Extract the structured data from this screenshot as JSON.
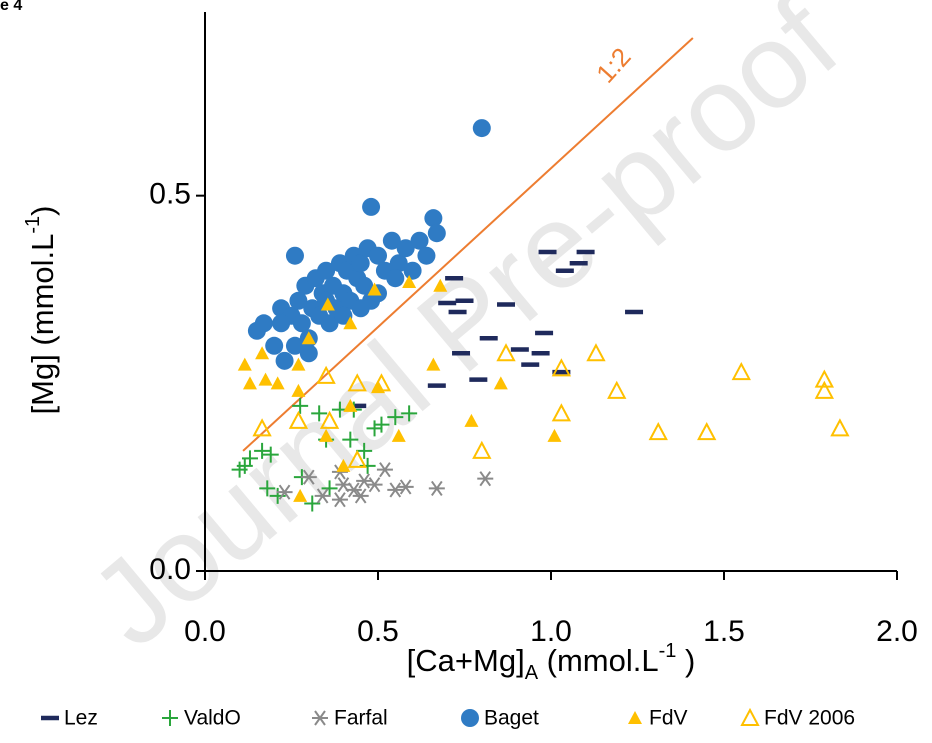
{
  "chart_data": {
    "type": "scatter",
    "figure_label": "e 4",
    "watermark": "Journal Pre-proof",
    "ylabel": [
      "[Mg] (mmol.L",
      "-1",
      ")"
    ],
    "xlabel": [
      "[Ca+Mg]",
      "A",
      " (mmol.L",
      "-1",
      " )"
    ],
    "xlim": [
      0,
      2
    ],
    "ylim": [
      0,
      0.75
    ],
    "xticks": [
      {
        "value": 0,
        "label": "0.0"
      },
      {
        "value": 0.5,
        "label": "0.5"
      },
      {
        "value": 1,
        "label": "1.0"
      },
      {
        "value": 1.5,
        "label": "1.5"
      },
      {
        "value": 2,
        "label": "2.0"
      }
    ],
    "yticks": [
      {
        "value": 0,
        "label": "0.0"
      },
      {
        "value": 0.5,
        "label": "0.5"
      }
    ],
    "grid": false,
    "legend": "bottom",
    "reference_line": {
      "label": "1:2",
      "color": "#ed7d31",
      "x": [
        0.11,
        1.41
      ],
      "y": [
        0.16,
        0.71
      ]
    },
    "series": [
      {
        "name": "Lez",
        "color": "#1f2a5c",
        "marker": "dash",
        "x": [
          0.44,
          0.72,
          0.7,
          0.75,
          0.73,
          0.87,
          0.82,
          0.74,
          0.67,
          0.79,
          0.91,
          0.97,
          0.98,
          0.94,
          1.03,
          1.04,
          1.08,
          1.1,
          0.99,
          1.24
        ],
        "values": [
          0.22,
          0.39,
          0.357,
          0.36,
          0.345,
          0.355,
          0.31,
          0.29,
          0.247,
          0.255,
          0.295,
          0.29,
          0.317,
          0.275,
          0.265,
          0.4,
          0.41,
          0.425,
          0.425,
          0.345
        ]
      },
      {
        "name": "ValdO",
        "color": "#2aa63c",
        "marker": "plus",
        "x": [
          0.1,
          0.115,
          0.13,
          0.165,
          0.19,
          0.18,
          0.21,
          0.28,
          0.31,
          0.33,
          0.35,
          0.39,
          0.43,
          0.42,
          0.46,
          0.49,
          0.51,
          0.55,
          0.59,
          0.47,
          0.275,
          0.36
        ],
        "values": [
          0.135,
          0.14,
          0.15,
          0.16,
          0.155,
          0.11,
          0.1,
          0.125,
          0.09,
          0.21,
          0.175,
          0.215,
          0.215,
          0.175,
          0.16,
          0.19,
          0.195,
          0.205,
          0.21,
          0.14,
          0.22,
          0.11
        ]
      },
      {
        "name": "Farfal",
        "color": "#8a8a8a",
        "marker": "asterisk",
        "x": [
          0.23,
          0.3,
          0.34,
          0.39,
          0.4,
          0.43,
          0.46,
          0.49,
          0.52,
          0.55,
          0.58,
          0.67,
          0.81,
          0.39,
          0.45
        ],
        "values": [
          0.105,
          0.125,
          0.1,
          0.095,
          0.115,
          0.108,
          0.12,
          0.115,
          0.135,
          0.108,
          0.112,
          0.11,
          0.123,
          0.132,
          0.1
        ]
      },
      {
        "name": "Baget",
        "color": "#2f7bc4",
        "marker": "circle",
        "x": [
          0.15,
          0.17,
          0.2,
          0.22,
          0.23,
          0.25,
          0.26,
          0.27,
          0.28,
          0.29,
          0.3,
          0.31,
          0.32,
          0.33,
          0.34,
          0.35,
          0.36,
          0.37,
          0.38,
          0.39,
          0.4,
          0.41,
          0.42,
          0.43,
          0.44,
          0.45,
          0.46,
          0.47,
          0.48,
          0.5,
          0.52,
          0.54,
          0.56,
          0.58,
          0.6,
          0.62,
          0.64,
          0.66,
          0.67,
          0.8,
          0.48,
          0.26,
          0.22,
          0.3,
          0.35,
          0.4,
          0.45,
          0.5,
          0.55
        ],
        "values": [
          0.32,
          0.33,
          0.3,
          0.35,
          0.28,
          0.34,
          0.42,
          0.36,
          0.33,
          0.38,
          0.31,
          0.35,
          0.39,
          0.34,
          0.37,
          0.4,
          0.33,
          0.38,
          0.35,
          0.41,
          0.37,
          0.4,
          0.36,
          0.42,
          0.39,
          0.41,
          0.38,
          0.43,
          0.36,
          0.42,
          0.4,
          0.44,
          0.41,
          0.43,
          0.4,
          0.44,
          0.42,
          0.47,
          0.45,
          0.59,
          0.485,
          0.3,
          0.33,
          0.29,
          0.36,
          0.34,
          0.35,
          0.37,
          0.39
        ]
      },
      {
        "name": "FdV",
        "color": "#ffc000",
        "marker": "triangle",
        "x": [
          0.115,
          0.165,
          0.13,
          0.175,
          0.21,
          0.27,
          0.3,
          0.355,
          0.42,
          0.49,
          0.59,
          0.68,
          0.27,
          0.35,
          0.42,
          0.5,
          0.56,
          0.66,
          0.77,
          0.855,
          1.01,
          0.4,
          0.275
        ],
        "values": [
          0.275,
          0.29,
          0.25,
          0.255,
          0.25,
          0.275,
          0.31,
          0.355,
          0.33,
          0.375,
          0.385,
          0.38,
          0.24,
          0.18,
          0.22,
          0.245,
          0.18,
          0.275,
          0.2,
          0.25,
          0.18,
          0.14,
          0.1
        ]
      },
      {
        "name": "FdV 2006",
        "color": "#ffc000",
        "marker": "triangle-open",
        "x": [
          0.165,
          0.27,
          0.35,
          0.44,
          0.51,
          0.8,
          0.87,
          1.03,
          1.03,
          1.13,
          1.19,
          1.31,
          1.45,
          1.55,
          1.79,
          1.79,
          1.835,
          0.44,
          0.36
        ],
        "values": [
          0.19,
          0.2,
          0.26,
          0.25,
          0.25,
          0.16,
          0.29,
          0.27,
          0.21,
          0.29,
          0.24,
          0.185,
          0.185,
          0.265,
          0.255,
          0.24,
          0.19,
          0.148,
          0.2
        ]
      }
    ]
  }
}
